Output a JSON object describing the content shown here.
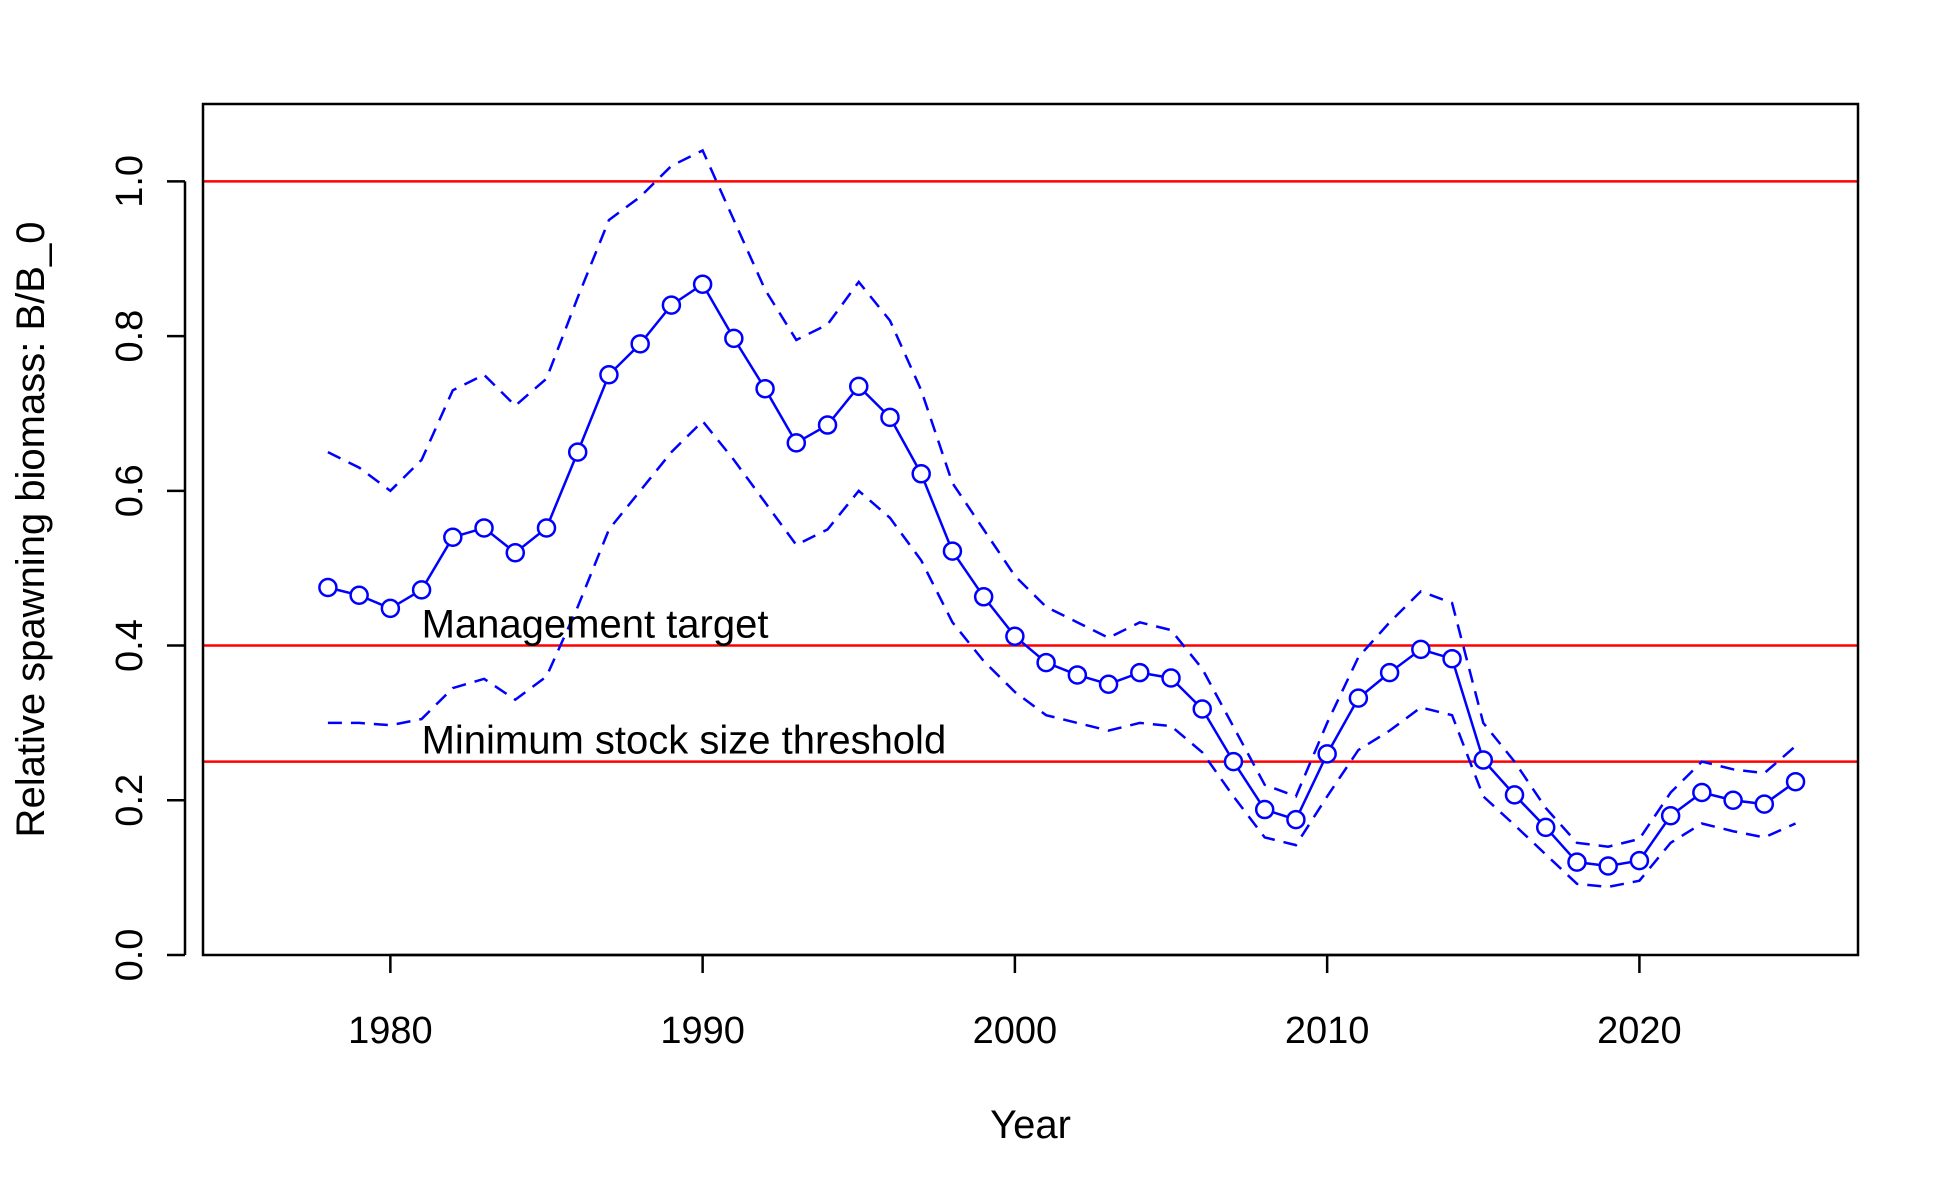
{
  "chart_data": {
    "type": "line",
    "title": "",
    "xlabel": "Year",
    "ylabel": "Relative spawning biomass: B/B_0",
    "xlim": [
      1974,
      2027
    ],
    "ylim": [
      0.0,
      1.1
    ],
    "x_ticks": [
      1980,
      1990,
      2000,
      2010,
      2020
    ],
    "x_tick_labels": [
      "1980",
      "1990",
      "2000",
      "2010",
      "2020"
    ],
    "y_ticks": [
      0.0,
      0.2,
      0.4,
      0.6,
      0.8,
      1.0
    ],
    "y_tick_labels": [
      "0.0",
      "0.2",
      "0.4",
      "0.6",
      "0.8",
      "1.0"
    ],
    "grid": false,
    "x": [
      1978,
      1979,
      1980,
      1981,
      1982,
      1983,
      1984,
      1985,
      1986,
      1987,
      1988,
      1989,
      1990,
      1991,
      1992,
      1993,
      1994,
      1995,
      1996,
      1997,
      1998,
      1999,
      2000,
      2001,
      2002,
      2003,
      2004,
      2005,
      2006,
      2007,
      2008,
      2009,
      2010,
      2011,
      2012,
      2013,
      2014,
      2015,
      2016,
      2017,
      2018,
      2019,
      2020,
      2021,
      2022,
      2023,
      2024,
      2025
    ],
    "series": [
      {
        "values": [
          0.475,
          0.465,
          0.448,
          0.472,
          0.54,
          0.552,
          0.52,
          0.552,
          0.65,
          0.75,
          0.79,
          0.84,
          0.867,
          0.797,
          0.732,
          0.662,
          0.685,
          0.735,
          0.695,
          0.622,
          0.522,
          0.463,
          0.412,
          0.378,
          0.362,
          0.35,
          0.365,
          0.358,
          0.318,
          0.25,
          0.188,
          0.175,
          0.26,
          0.332,
          0.365,
          0.395,
          0.383,
          0.252,
          0.207,
          0.165,
          0.12,
          0.115,
          0.122,
          0.18,
          0.21,
          0.2,
          0.195,
          0.224
        ],
        "color": "#0000ff",
        "style": "solid-with-circles"
      },
      {
        "values": [
          0.65,
          0.63,
          0.6,
          0.64,
          0.73,
          0.75,
          0.71,
          0.745,
          0.85,
          0.95,
          0.98,
          1.02,
          1.04,
          0.95,
          0.86,
          0.795,
          0.815,
          0.87,
          0.82,
          0.73,
          0.61,
          0.55,
          0.49,
          0.45,
          0.43,
          0.41,
          0.43,
          0.42,
          0.37,
          0.295,
          0.22,
          0.205,
          0.3,
          0.385,
          0.43,
          0.47,
          0.455,
          0.3,
          0.25,
          0.19,
          0.145,
          0.14,
          0.15,
          0.21,
          0.25,
          0.24,
          0.235,
          0.27
        ],
        "color": "#0000ff",
        "style": "dashed"
      },
      {
        "values": [
          0.3,
          0.3,
          0.297,
          0.305,
          0.345,
          0.357,
          0.33,
          0.36,
          0.45,
          0.55,
          0.6,
          0.65,
          0.69,
          0.64,
          0.585,
          0.53,
          0.55,
          0.6,
          0.565,
          0.51,
          0.43,
          0.38,
          0.34,
          0.31,
          0.3,
          0.29,
          0.3,
          0.296,
          0.262,
          0.205,
          0.152,
          0.142,
          0.205,
          0.265,
          0.29,
          0.32,
          0.31,
          0.205,
          0.168,
          0.13,
          0.092,
          0.088,
          0.096,
          0.145,
          0.17,
          0.16,
          0.152,
          0.17
        ],
        "color": "#0000ff",
        "style": "dashed"
      }
    ],
    "hlines": [
      {
        "y": 1.0,
        "color": "#ff0000"
      },
      {
        "y": 0.4,
        "color": "#ff0000"
      },
      {
        "y": 0.25,
        "color": "#ff0000"
      }
    ],
    "annotations": [
      {
        "text": "Management target",
        "x": 1981,
        "y": 0.4
      },
      {
        "text": "Minimum stock size threshold",
        "x": 1981,
        "y": 0.25
      }
    ]
  }
}
